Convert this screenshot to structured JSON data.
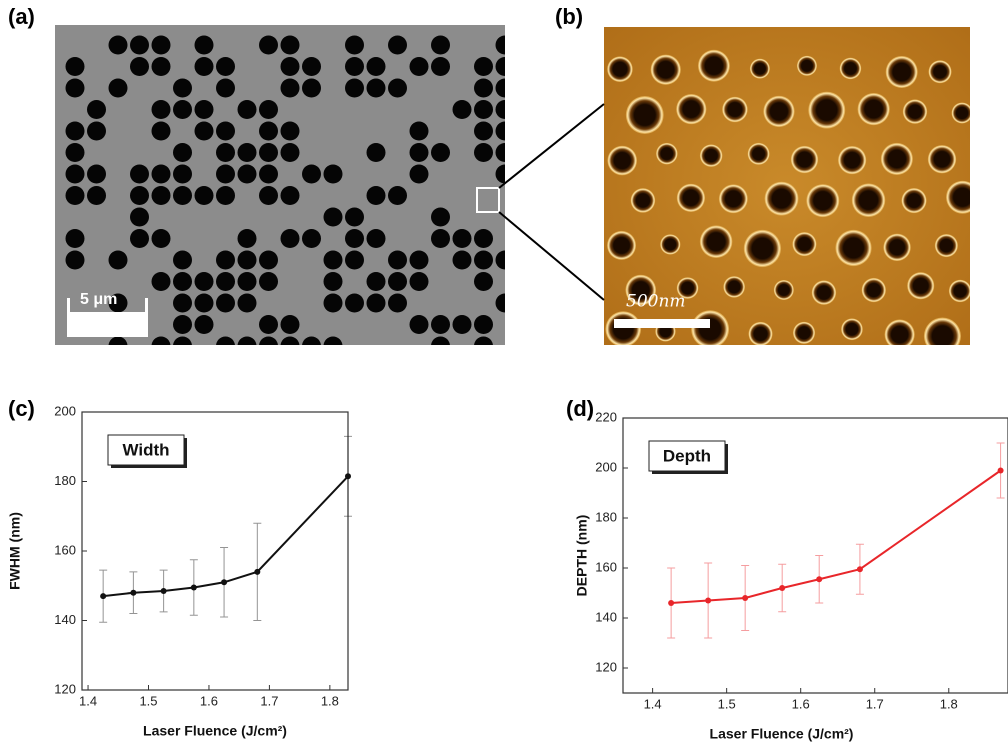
{
  "figure": {
    "panel_labels": [
      "(a)",
      "(b)",
      "(c)",
      "(d)"
    ],
    "scale_bars": [
      "5 μm",
      "500nm"
    ]
  },
  "chart_data": [
    {
      "type": "line",
      "annotation": "Width",
      "y_label": "FWHM (nm)",
      "x_label": "Laser Fluence (J/cm²)",
      "x": [
        1.425,
        1.475,
        1.525,
        1.575,
        1.625,
        1.68,
        1.83
      ],
      "values": [
        147,
        148,
        148.5,
        149.5,
        151,
        154,
        181.5
      ],
      "errors": [
        7.5,
        6,
        6,
        8,
        10,
        14,
        11.5
      ],
      "color": "#111111",
      "xlim": [
        1.39,
        1.83
      ],
      "ylim": [
        120,
        200
      ],
      "xticks": [
        1.4,
        1.5,
        1.6,
        1.7,
        1.8
      ],
      "yticks": [
        120,
        140,
        160,
        180,
        200
      ]
    },
    {
      "type": "line",
      "annotation": "Depth",
      "y_label": "DEPTH (nm)",
      "x_label": "Laser Fluence (J/cm²)",
      "x": [
        1.425,
        1.475,
        1.525,
        1.575,
        1.625,
        1.68,
        1.87
      ],
      "values": [
        146,
        147,
        148,
        152,
        155.5,
        159.5,
        199
      ],
      "errors": [
        14,
        15,
        13,
        9.5,
        9.5,
        10,
        11
      ],
      "color": "#e8262a",
      "xlim": [
        1.36,
        1.88
      ],
      "ylim": [
        110,
        220
      ],
      "xticks": [
        1.4,
        1.5,
        1.6,
        1.7,
        1.8
      ],
      "yticks": [
        120,
        140,
        160,
        180,
        200,
        220
      ]
    }
  ]
}
